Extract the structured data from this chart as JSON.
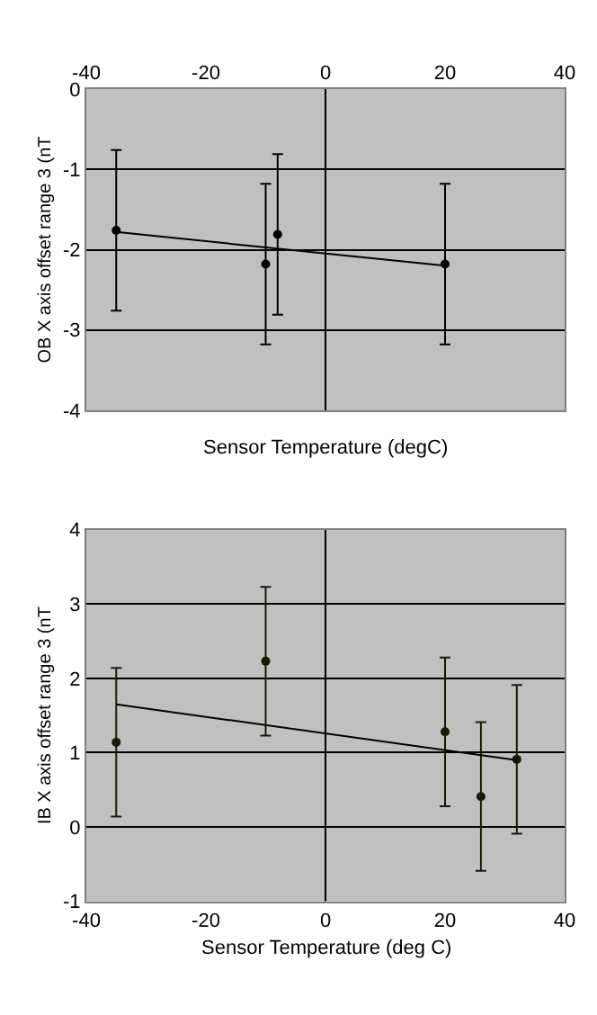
{
  "chart_data": [
    {
      "type": "scatter",
      "xlabel": "Sensor Temperature (degC)",
      "ylabel": "OB X axis offset range 3 (nT",
      "xlim": [
        -40,
        40
      ],
      "xticks": [
        -40,
        -20,
        0,
        20,
        40
      ],
      "ylim": [
        -4,
        0
      ],
      "yticks": [
        -4,
        -3,
        -2,
        -1,
        0
      ],
      "grid": "y",
      "marker": "circle",
      "series": [
        {
          "color": "#000000",
          "x": [
            -35,
            -10,
            -8,
            20
          ],
          "values": [
            -1.76,
            -2.18,
            -1.81,
            -2.18
          ],
          "errors": [
            1,
            1,
            1,
            1
          ]
        },
        {
          "type": "line",
          "color": "#000000",
          "x": [
            -35,
            20
          ],
          "values": [
            -1.78,
            -2.2
          ],
          "marker": "none"
        }
      ],
      "ref_lines": [
        {
          "axis": "x",
          "value": 0,
          "color": "#000000"
        }
      ]
    },
    {
      "type": "scatter",
      "xlabel": "Sensor Temperature (deg C)",
      "ylabel": "IB X axis offset range 3 (nT",
      "xlim": [
        -40,
        40
      ],
      "xticks": [
        -40,
        -20,
        0,
        20,
        40
      ],
      "ylim": [
        -1,
        4
      ],
      "yticks": [
        -1,
        0,
        1,
        2,
        3,
        4
      ],
      "grid": "y",
      "marker": "circle",
      "series": [
        {
          "color": "#1a1a00",
          "x": [
            -35,
            -10,
            20,
            26,
            32
          ],
          "values": [
            1.14,
            2.23,
            1.28,
            0.41,
            0.91
          ],
          "errors": [
            1,
            1,
            1,
            1,
            1
          ]
        },
        {
          "type": "line",
          "color": "#000000",
          "x": [
            -35,
            32
          ],
          "values": [
            1.65,
            0.9
          ],
          "marker": "none"
        }
      ],
      "ref_lines": [
        {
          "axis": "x",
          "value": 0,
          "color": "#000000"
        }
      ]
    }
  ]
}
